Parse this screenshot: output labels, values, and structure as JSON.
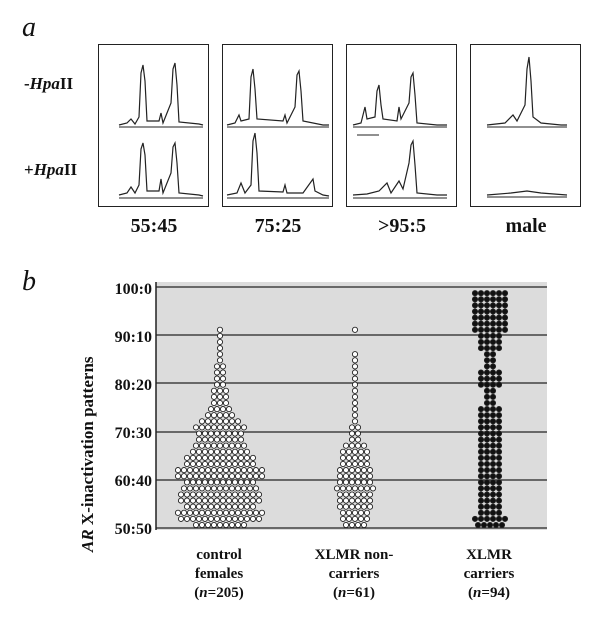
{
  "panel_a": {
    "letter": "a",
    "row_labels": [
      {
        "sign": "-",
        "enzyme": "Hpa",
        "suffix": "II"
      },
      {
        "sign": "+",
        "enzyme": "Hpa",
        "suffix": "II"
      }
    ],
    "ratios": [
      "55:45",
      "75:25",
      ">95:5",
      "male"
    ]
  },
  "panel_b": {
    "letter": "b",
    "ylabel_italic": "AR",
    "ylabel_rest": " X-inactivation patterns",
    "yticks": [
      "100:0",
      "90:10",
      "80:20",
      "70:30",
      "60:40",
      "50:50"
    ],
    "groups": [
      {
        "line1": "control",
        "line2": "females",
        "n_label": "n",
        "n_value": "=205"
      },
      {
        "line1": "XLMR non-",
        "line2": "carriers",
        "n_label": "n",
        "n_value": "=61"
      },
      {
        "line1": "XLMR",
        "line2": "carriers",
        "n_label": "n",
        "n_value": "=94"
      }
    ],
    "colors": {
      "background": "#dcdcdc",
      "open_dot": "#ffffff",
      "filled_dot": "#111111"
    }
  }
}
